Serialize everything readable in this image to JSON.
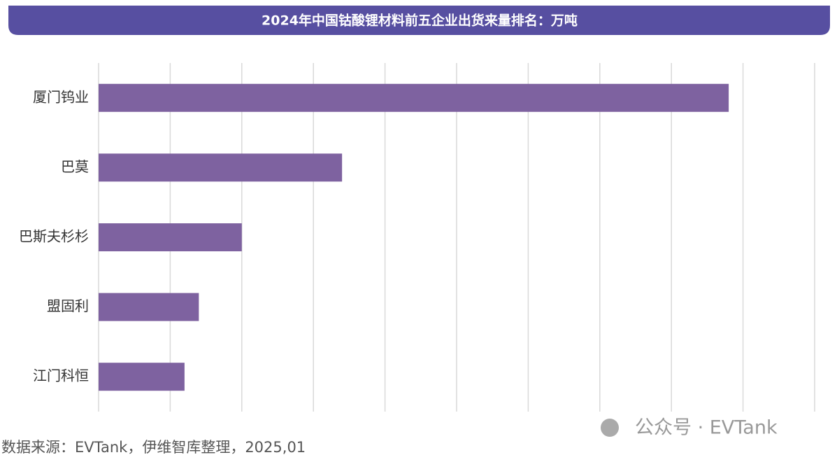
{
  "chart_data": {
    "type": "bar",
    "orientation": "horizontal",
    "title": "2024年中国钴酸锂材料前五企业出货来量排名：万吨",
    "categories": [
      "厦门钨业",
      "巴莫",
      "巴斯夫杉杉",
      "盟固利",
      "江门科恒"
    ],
    "values": [
      4.4,
      1.7,
      1.0,
      0.7,
      0.6
    ],
    "color": "#7e62a0",
    "xlim": [
      0,
      5
    ],
    "xticks": [
      0,
      0.5,
      1,
      1.5,
      2,
      2.5,
      3,
      3.5,
      4,
      4.5,
      5
    ],
    "grid": true,
    "source": "数据来源：EVTank，伊维智库整理，2025,01",
    "watermark": "公众号 · EVTank"
  }
}
